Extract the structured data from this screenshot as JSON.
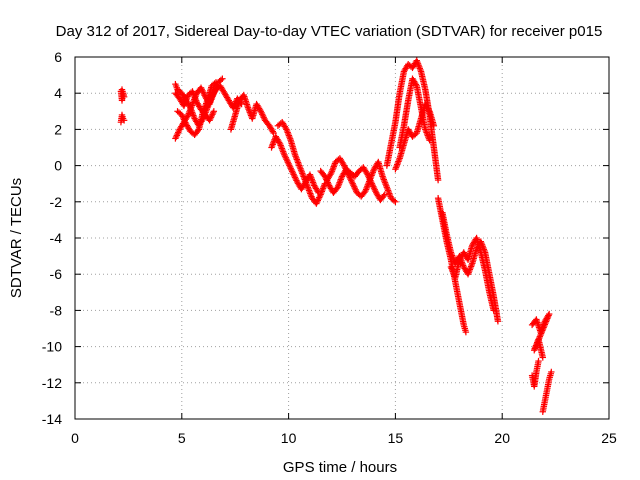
{
  "chart_data": {
    "type": "scatter",
    "title": "Day 312 of 2017, Sidereal Day-to-day VTEC variation (SDTVAR) for receiver p015",
    "xlabel": "GPS time / hours",
    "ylabel": "SDTVAR / TECUs",
    "xlim": [
      0,
      25
    ],
    "ylim": [
      -14,
      6
    ],
    "xticks": [
      0,
      5,
      10,
      15,
      20,
      25
    ],
    "yticks": [
      -14,
      -12,
      -10,
      -8,
      -6,
      -4,
      -2,
      0,
      2,
      4,
      6
    ],
    "grid": true,
    "marker": "+",
    "color": "#ff0000",
    "series": [
      {
        "segments": [
          [
            [
              2.15,
              4.1
            ],
            [
              2.2,
              3.6
            ],
            [
              2.25,
              4.0
            ],
            [
              2.3,
              3.8
            ],
            [
              2.2,
              4.2
            ]
          ],
          [
            [
              2.15,
              2.4
            ],
            [
              2.2,
              2.8
            ],
            [
              2.25,
              2.6
            ],
            [
              2.3,
              2.5
            ]
          ],
          [
            [
              4.7,
              4.5
            ],
            [
              4.8,
              4.2
            ],
            [
              5.0,
              4.0
            ],
            [
              5.2,
              3.6
            ],
            [
              5.4,
              3.2
            ],
            [
              5.6,
              2.6
            ],
            [
              5.8,
              2.2
            ],
            [
              6.0,
              2.6
            ],
            [
              6.2,
              3.2
            ],
            [
              6.4,
              3.8
            ],
            [
              6.6,
              4.2
            ],
            [
              6.8,
              4.4
            ],
            [
              7.0,
              4.0
            ],
            [
              7.2,
              3.6
            ],
            [
              7.4,
              3.2
            ],
            [
              7.6,
              3.7
            ],
            [
              7.8,
              3.4
            ]
          ],
          [
            [
              4.7,
              1.5
            ],
            [
              4.9,
              2.0
            ],
            [
              5.1,
              2.4
            ],
            [
              5.3,
              2.8
            ],
            [
              5.5,
              3.4
            ],
            [
              5.7,
              4.0
            ],
            [
              5.9,
              4.3
            ],
            [
              6.1,
              3.8
            ],
            [
              6.3,
              3.4
            ],
            [
              6.5,
              4.0
            ],
            [
              6.7,
              4.6
            ],
            [
              6.9,
              4.8
            ]
          ],
          [
            [
              4.8,
              3.0
            ],
            [
              5.0,
              2.8
            ],
            [
              5.2,
              2.3
            ],
            [
              5.4,
              1.9
            ],
            [
              5.6,
              1.7
            ],
            [
              5.8,
              2.0
            ],
            [
              6.0,
              3.0
            ],
            [
              6.2,
              3.6
            ],
            [
              6.4,
              4.4
            ],
            [
              6.6,
              4.6
            ]
          ],
          [
            [
              4.7,
              4.0
            ],
            [
              4.9,
              3.7
            ],
            [
              5.1,
              3.3
            ],
            [
              5.3,
              3.9
            ],
            [
              5.5,
              4.1
            ],
            [
              5.7,
              3.5
            ],
            [
              5.9,
              3.1
            ],
            [
              6.1,
              2.8
            ],
            [
              6.3,
              2.5
            ],
            [
              6.5,
              3.0
            ]
          ],
          [
            [
              7.3,
              2.0
            ],
            [
              7.5,
              2.8
            ],
            [
              7.7,
              3.6
            ],
            [
              7.9,
              3.9
            ],
            [
              8.1,
              3.2
            ],
            [
              8.3,
              2.6
            ],
            [
              8.5,
              3.4
            ],
            [
              8.7,
              3.0
            ],
            [
              8.9,
              2.5
            ],
            [
              9.1,
              2.2
            ],
            [
              9.3,
              1.8
            ]
          ],
          [
            [
              9.5,
              2.2
            ],
            [
              9.7,
              2.4
            ],
            [
              9.9,
              2.0
            ],
            [
              10.1,
              1.4
            ],
            [
              10.3,
              0.6
            ],
            [
              10.5,
              0.0
            ],
            [
              10.7,
              -0.6
            ],
            [
              10.9,
              -1.2
            ],
            [
              11.1,
              -1.8
            ],
            [
              11.3,
              -2.1
            ],
            [
              11.5,
              -1.6
            ],
            [
              11.7,
              -1.0
            ]
          ],
          [
            [
              9.2,
              1.0
            ],
            [
              9.4,
              1.6
            ],
            [
              9.6,
              1.2
            ],
            [
              9.8,
              0.6
            ],
            [
              10.0,
              0.1
            ],
            [
              10.2,
              -0.4
            ],
            [
              10.4,
              -0.9
            ],
            [
              10.6,
              -1.3
            ],
            [
              10.8,
              -0.9
            ],
            [
              11.0,
              -0.5
            ],
            [
              11.2,
              -1.1
            ],
            [
              11.4,
              -1.5
            ]
          ],
          [
            [
              11.8,
              -0.8
            ],
            [
              12.0,
              -0.4
            ],
            [
              12.2,
              0.2
            ],
            [
              12.4,
              0.4
            ],
            [
              12.6,
              0.0
            ],
            [
              12.8,
              -0.5
            ],
            [
              13.0,
              -1.0
            ],
            [
              13.2,
              -1.5
            ],
            [
              13.4,
              -1.7
            ],
            [
              13.6,
              -1.4
            ],
            [
              13.8,
              -0.8
            ],
            [
              14.0,
              -0.2
            ],
            [
              14.2,
              0.2
            ],
            [
              14.4,
              -0.6
            ],
            [
              14.6,
              -1.2
            ],
            [
              14.8,
              -1.8
            ],
            [
              15.0,
              -2.0
            ]
          ],
          [
            [
              11.5,
              -0.3
            ],
            [
              11.7,
              -0.6
            ],
            [
              11.9,
              -1.1
            ],
            [
              12.1,
              -1.5
            ],
            [
              12.3,
              -1.2
            ],
            [
              12.5,
              -0.6
            ],
            [
              12.7,
              -0.2
            ],
            [
              12.9,
              -0.4
            ],
            [
              13.1,
              -0.6
            ],
            [
              13.3,
              -0.3
            ],
            [
              13.5,
              -0.1
            ],
            [
              13.7,
              -0.5
            ],
            [
              13.9,
              -1.0
            ],
            [
              14.1,
              -1.5
            ],
            [
              14.3,
              -1.9
            ],
            [
              14.5,
              -1.6
            ]
          ],
          [
            [
              14.6,
              0.0
            ],
            [
              14.8,
              1.2
            ],
            [
              15.0,
              2.4
            ],
            [
              15.2,
              4.0
            ],
            [
              15.4,
              5.2
            ],
            [
              15.6,
              5.6
            ],
            [
              15.8,
              5.4
            ],
            [
              16.0,
              5.8
            ],
            [
              16.2,
              5.2
            ],
            [
              16.4,
              4.2
            ],
            [
              16.6,
              2.8
            ],
            [
              16.8,
              1.0
            ],
            [
              17.0,
              -0.8
            ]
          ],
          [
            [
              15.2,
              1.0
            ],
            [
              15.4,
              2.2
            ],
            [
              15.6,
              3.6
            ],
            [
              15.8,
              4.8
            ],
            [
              16.0,
              4.4
            ],
            [
              16.2,
              3.2
            ],
            [
              16.4,
              2.0
            ],
            [
              16.6,
              1.4
            ]
          ],
          [
            [
              15.0,
              -0.2
            ],
            [
              15.2,
              0.4
            ],
            [
              15.4,
              1.2
            ],
            [
              15.6,
              2.0
            ],
            [
              15.8,
              1.6
            ],
            [
              16.0,
              1.8
            ],
            [
              16.2,
              2.6
            ],
            [
              16.4,
              3.4
            ],
            [
              16.6,
              3.0
            ],
            [
              16.8,
              2.2
            ]
          ],
          [
            [
              17.0,
              -1.8
            ],
            [
              17.2,
              -3.0
            ],
            [
              17.4,
              -4.2
            ],
            [
              17.6,
              -5.2
            ],
            [
              17.8,
              -6.4
            ],
            [
              18.0,
              -7.6
            ],
            [
              18.2,
              -8.8
            ],
            [
              18.3,
              -9.2
            ]
          ],
          [
            [
              17.2,
              -2.6
            ],
            [
              17.4,
              -3.8
            ],
            [
              17.6,
              -4.8
            ],
            [
              17.8,
              -5.4
            ],
            [
              18.0,
              -5.0
            ],
            [
              18.2,
              -5.6
            ],
            [
              18.4,
              -6.0
            ],
            [
              18.6,
              -5.4
            ],
            [
              18.8,
              -4.6
            ],
            [
              19.0,
              -4.2
            ],
            [
              19.2,
              -4.8
            ],
            [
              19.4,
              -6.0
            ],
            [
              19.6,
              -7.2
            ],
            [
              19.8,
              -8.6
            ]
          ],
          [
            [
              17.6,
              -5.6
            ],
            [
              17.8,
              -6.2
            ],
            [
              18.0,
              -5.2
            ],
            [
              18.2,
              -4.8
            ],
            [
              18.4,
              -5.2
            ],
            [
              18.6,
              -4.4
            ],
            [
              18.8,
              -4.0
            ],
            [
              19.0,
              -4.8
            ],
            [
              19.2,
              -5.8
            ],
            [
              19.4,
              -7.0
            ],
            [
              19.6,
              -8.0
            ]
          ],
          [
            [
              21.4,
              -8.8
            ],
            [
              21.6,
              -8.5
            ],
            [
              21.8,
              -9.2
            ],
            [
              22.0,
              -8.6
            ],
            [
              22.2,
              -8.2
            ],
            [
              21.5,
              -10.2
            ],
            [
              21.7,
              -9.6
            ],
            [
              21.9,
              -10.6
            ]
          ],
          [
            [
              21.4,
              -11.6
            ],
            [
              21.5,
              -12.2
            ],
            [
              21.6,
              -11.4
            ],
            [
              21.7,
              -10.8
            ]
          ],
          [
            [
              21.9,
              -13.6
            ],
            [
              22.0,
              -13.0
            ],
            [
              22.1,
              -12.4
            ],
            [
              22.2,
              -11.8
            ],
            [
              22.3,
              -11.4
            ]
          ]
        ]
      }
    ]
  }
}
